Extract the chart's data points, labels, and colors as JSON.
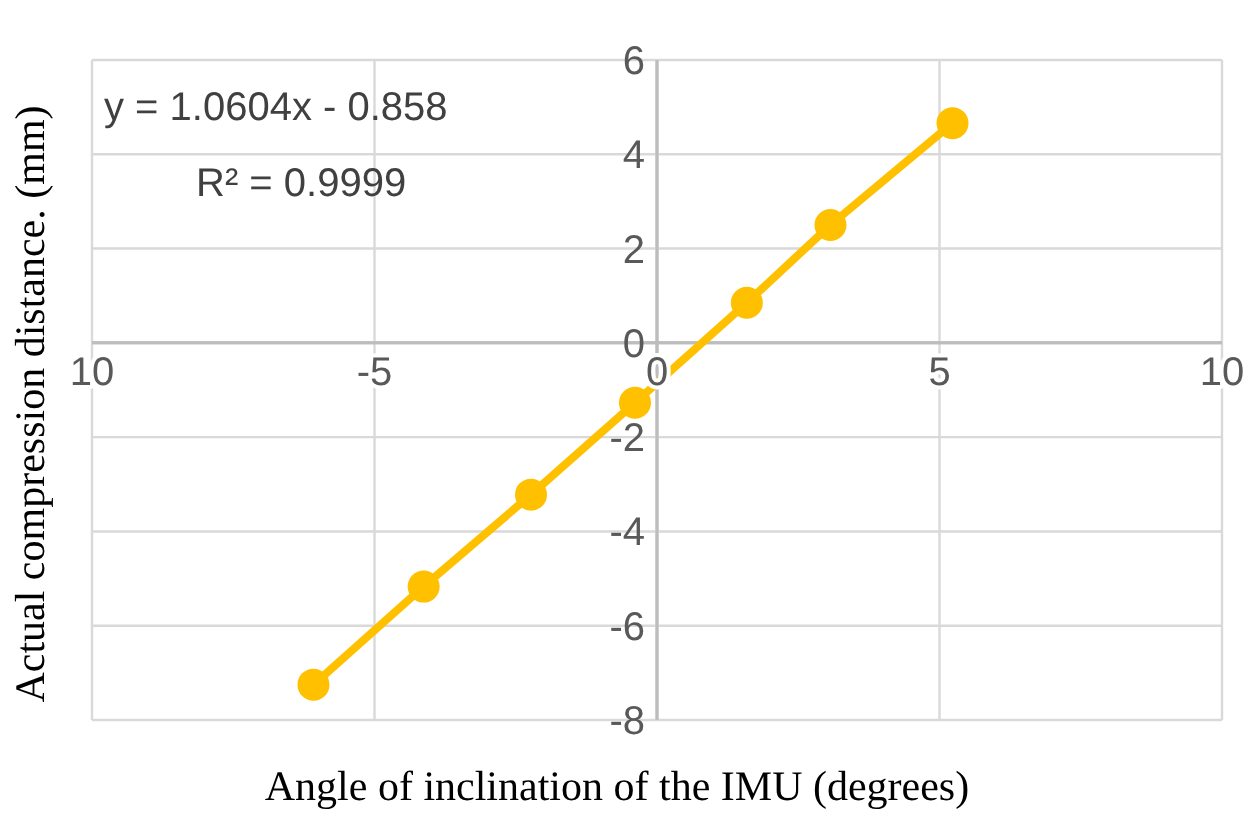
{
  "chart_data": {
    "type": "line",
    "xlabel": "Angle of inclination of the IMU (degrees)",
    "ylabel": "Actual compression distance. (mm)",
    "x": [
      -6.08,
      -4.13,
      -2.23,
      -0.39,
      1.59,
      3.07,
      5.23
    ],
    "series": [
      {
        "color": "#ffc000",
        "values": [
          -7.25,
          -5.17,
          -3.22,
          -1.27,
          0.85,
          2.5,
          4.66
        ]
      }
    ],
    "xlim": [
      -10,
      10
    ],
    "xticks": [
      {
        "value": -10,
        "label": "10"
      },
      -5,
      0,
      5,
      10
    ],
    "ylim": [
      -8,
      6
    ],
    "yticks": [
      -8,
      -6,
      -4,
      -2,
      0,
      2,
      4,
      6
    ],
    "grid": true,
    "marker": "circle",
    "line_style": "solid",
    "annotations": [
      "y = 1.0604x - 0.858",
      "R² = 0.9999"
    ]
  }
}
